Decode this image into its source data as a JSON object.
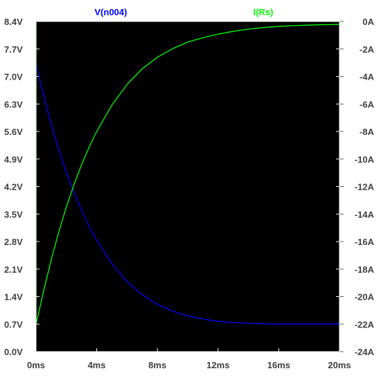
{
  "chart_data": {
    "type": "line",
    "x_unit": "ms",
    "x_ticks": [
      "0ms",
      "4ms",
      "8ms",
      "12ms",
      "16ms",
      "20ms"
    ],
    "xlim": [
      0,
      20
    ],
    "y_left_ticks": [
      "8.4V",
      "7.7V",
      "7.0V",
      "6.3V",
      "5.6V",
      "4.9V",
      "4.2V",
      "3.5V",
      "2.8V",
      "2.1V",
      "1.4V",
      "0.7V",
      "0.0V"
    ],
    "y_left_lim": [
      0,
      8.4
    ],
    "y_right_ticks": [
      "0A",
      "-2A",
      "-4A",
      "-6A",
      "-8A",
      "-10A",
      "-12A",
      "-14A",
      "-16A",
      "-18A",
      "-20A",
      "-22A",
      "-24A"
    ],
    "y_right_lim": [
      -24,
      0
    ],
    "grid": false,
    "background": "#000000",
    "series": [
      {
        "name": "V(n004)",
        "axis": "left",
        "color": "#0000ff",
        "x": [
          0,
          0.5,
          1,
          1.5,
          2,
          2.5,
          3,
          3.5,
          4,
          5,
          6,
          7,
          8,
          9,
          10,
          11,
          12,
          13,
          14,
          15,
          16,
          17,
          18,
          19,
          20
        ],
        "y": [
          7.3,
          6.52,
          5.79,
          5.14,
          4.56,
          4.05,
          3.59,
          3.19,
          2.83,
          2.24,
          1.78,
          1.45,
          1.2,
          1.03,
          0.91,
          0.83,
          0.77,
          0.74,
          0.72,
          0.71,
          0.7,
          0.7,
          0.7,
          0.7,
          0.7
        ]
      },
      {
        "name": "I(Rs)",
        "axis": "right",
        "color": "#00ff00",
        "x": [
          0,
          0.5,
          1,
          1.5,
          2,
          2.5,
          3,
          3.5,
          4,
          5,
          6,
          7,
          8,
          9,
          10,
          11,
          12,
          13,
          14,
          15,
          16,
          17,
          18,
          19,
          20
        ],
        "y": [
          -22.0,
          -19.58,
          -17.33,
          -15.31,
          -13.48,
          -11.86,
          -10.42,
          -9.14,
          -8.0,
          -6.08,
          -4.58,
          -3.44,
          -2.6,
          -1.98,
          -1.5,
          -1.18,
          -0.92,
          -0.72,
          -0.56,
          -0.44,
          -0.36,
          -0.3,
          -0.26,
          -0.23,
          -0.21
        ]
      }
    ]
  }
}
